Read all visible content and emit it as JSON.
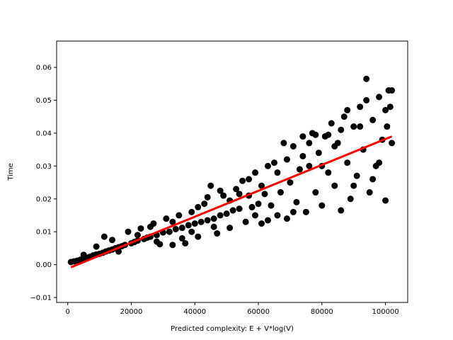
{
  "chart_data": {
    "type": "scatter",
    "title": "",
    "xlabel": "Predicted complexity: E + V*log(V)",
    "ylabel": "Time",
    "xlim": [
      -3500,
      107000
    ],
    "ylim": [
      -0.0115,
      0.068
    ],
    "xticks": [
      0,
      20000,
      40000,
      60000,
      80000,
      100000
    ],
    "xtick_labels": [
      "0",
      "20000",
      "40000",
      "60000",
      "80000",
      "100000"
    ],
    "yticks": [
      -0.01,
      0.0,
      0.01,
      0.02,
      0.03,
      0.04,
      0.05,
      0.06
    ],
    "ytick_labels": [
      "−0.01",
      "0.00",
      "0.01",
      "0.02",
      "0.03",
      "0.04",
      "0.05",
      "0.06"
    ],
    "grid": false,
    "legend": "none",
    "series": [
      {
        "kind": "scatter",
        "color": "#000000",
        "points": [
          [
            1000,
            0.0008
          ],
          [
            2000,
            0.001
          ],
          [
            3000,
            0.0012
          ],
          [
            4000,
            0.0015
          ],
          [
            5000,
            0.0018
          ],
          [
            6000,
            0.0021
          ],
          [
            7000,
            0.0024
          ],
          [
            8000,
            0.0028
          ],
          [
            9000,
            0.0031
          ],
          [
            10000,
            0.0033
          ],
          [
            11000,
            0.0036
          ],
          [
            11500,
            0.0085
          ],
          [
            12000,
            0.004
          ],
          [
            13000,
            0.0043
          ],
          [
            14000,
            0.0046
          ],
          [
            15000,
            0.005
          ],
          [
            16000,
            0.0053
          ],
          [
            17000,
            0.0056
          ],
          [
            18000,
            0.006
          ],
          [
            19000,
            0.01
          ],
          [
            20000,
            0.0065
          ],
          [
            21000,
            0.0069
          ],
          [
            22000,
            0.0073
          ],
          [
            23000,
            0.011
          ],
          [
            24000,
            0.0078
          ],
          [
            25000,
            0.0082
          ],
          [
            26000,
            0.0085
          ],
          [
            27000,
            0.0125
          ],
          [
            28000,
            0.009
          ],
          [
            29000,
            0.0062
          ],
          [
            30000,
            0.0098
          ],
          [
            31000,
            0.014
          ],
          [
            32000,
            0.01
          ],
          [
            33000,
            0.006
          ],
          [
            34000,
            0.0108
          ],
          [
            35000,
            0.015
          ],
          [
            36000,
            0.0112
          ],
          [
            37000,
            0.0065
          ],
          [
            38000,
            0.012
          ],
          [
            39000,
            0.016
          ],
          [
            40000,
            0.0125
          ],
          [
            41000,
            0.0085
          ],
          [
            42000,
            0.013
          ],
          [
            43000,
            0.0185
          ],
          [
            44000,
            0.0135
          ],
          [
            45000,
            0.024
          ],
          [
            46000,
            0.014
          ],
          [
            47000,
            0.0095
          ],
          [
            48000,
            0.015
          ],
          [
            49000,
            0.021
          ],
          [
            50000,
            0.0155
          ],
          [
            51000,
            0.0112
          ],
          [
            52000,
            0.0165
          ],
          [
            53000,
            0.023
          ],
          [
            54000,
            0.017
          ],
          [
            55000,
            0.0255
          ],
          [
            56000,
            0.013
          ],
          [
            57000,
            0.021
          ],
          [
            58000,
            0.0175
          ],
          [
            59000,
            0.028
          ],
          [
            60000,
            0.0185
          ],
          [
            61000,
            0.0125
          ],
          [
            62000,
            0.0215
          ],
          [
            63000,
            0.03
          ],
          [
            64000,
            0.018
          ],
          [
            65000,
            0.031
          ],
          [
            66000,
            0.015
          ],
          [
            67000,
            0.022
          ],
          [
            68000,
            0.037
          ],
          [
            69000,
            0.014
          ],
          [
            70000,
            0.025
          ],
          [
            71000,
            0.036
          ],
          [
            72000,
            0.019
          ],
          [
            73000,
            0.029
          ],
          [
            74000,
            0.039
          ],
          [
            75000,
            0.016
          ],
          [
            76000,
            0.03
          ],
          [
            77000,
            0.04
          ],
          [
            78000,
            0.022
          ],
          [
            79000,
            0.034
          ],
          [
            80000,
            0.018
          ],
          [
            81000,
            0.039
          ],
          [
            82000,
            0.028
          ],
          [
            83000,
            0.043
          ],
          [
            84000,
            0.024
          ],
          [
            85000,
            0.037
          ],
          [
            86000,
            0.0165
          ],
          [
            87000,
            0.045
          ],
          [
            88000,
            0.031
          ],
          [
            89000,
            0.02
          ],
          [
            90000,
            0.042
          ],
          [
            91000,
            0.027
          ],
          [
            92000,
            0.048
          ],
          [
            93000,
            0.035
          ],
          [
            94000,
            0.0565
          ],
          [
            95000,
            0.022
          ],
          [
            96000,
            0.044
          ],
          [
            97000,
            0.03
          ],
          [
            98000,
            0.051
          ],
          [
            99000,
            0.038
          ],
          [
            100000,
            0.0195
          ],
          [
            101000,
            0.053
          ],
          [
            102000,
            0.037
          ],
          [
            100500,
            0.042
          ],
          [
            101500,
            0.048
          ],
          [
            5000,
            0.003
          ],
          [
            9000,
            0.0055
          ],
          [
            14000,
            0.0075
          ],
          [
            16000,
            0.004
          ],
          [
            22000,
            0.009
          ],
          [
            26000,
            0.0115
          ],
          [
            28000,
            0.007
          ],
          [
            33000,
            0.013
          ],
          [
            36000,
            0.008
          ],
          [
            39000,
            0.01
          ],
          [
            41000,
            0.0175
          ],
          [
            44000,
            0.0205
          ],
          [
            46000,
            0.0115
          ],
          [
            48000,
            0.0225
          ],
          [
            51000,
            0.0195
          ],
          [
            54000,
            0.0215
          ],
          [
            57000,
            0.026
          ],
          [
            59000,
            0.015
          ],
          [
            61000,
            0.024
          ],
          [
            63000,
            0.0135
          ],
          [
            66000,
            0.028
          ],
          [
            69000,
            0.032
          ],
          [
            71000,
            0.016
          ],
          [
            74000,
            0.033
          ],
          [
            76000,
            0.037
          ],
          [
            78000,
            0.0395
          ],
          [
            80000,
            0.03
          ],
          [
            82000,
            0.0395
          ],
          [
            84000,
            0.036
          ],
          [
            86000,
            0.041
          ],
          [
            88000,
            0.047
          ],
          [
            90000,
            0.024
          ],
          [
            92000,
            0.042
          ],
          [
            94000,
            0.05
          ],
          [
            96000,
            0.026
          ],
          [
            98000,
            0.031
          ],
          [
            100000,
            0.047
          ],
          [
            102000,
            0.053
          ]
        ]
      },
      {
        "kind": "line",
        "color": "#ff0000",
        "points": [
          [
            1000,
            -0.0008
          ],
          [
            102000,
            0.039
          ]
        ]
      }
    ]
  }
}
